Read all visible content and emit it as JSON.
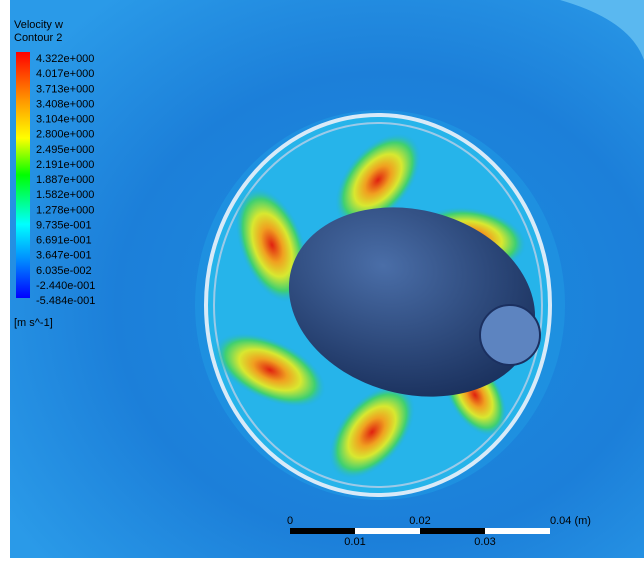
{
  "legend": {
    "title": "Velocity w",
    "subtitle": "Contour 2",
    "labels": [
      "4.322e+000",
      "4.017e+000",
      "3.713e+000",
      "3.408e+000",
      "3.104e+000",
      "2.800e+000",
      "2.495e+000",
      "2.191e+000",
      "1.887e+000",
      "1.582e+000",
      "1.278e+000",
      "9.735e-001",
      "6.691e-001",
      "3.647e-001",
      "6.035e-002",
      "-2.440e-001",
      "-5.484e-001"
    ],
    "unit": "[m s^-1]"
  },
  "scale_bar": {
    "top_labels": [
      "0",
      "0.02",
      "0.04 (m)"
    ],
    "bottom_labels": [
      "0.01",
      "0.03"
    ]
  }
}
